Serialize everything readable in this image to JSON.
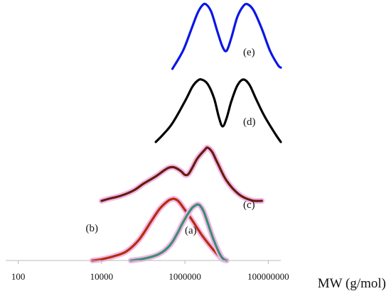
{
  "chart_data": {
    "type": "line",
    "xscale": "log",
    "xlim": [
      50,
      200000000
    ],
    "xlabel": "MW (g/mol)",
    "ylabel": "",
    "yaxis_shown": false,
    "grid": false,
    "legend": "none",
    "ticks": [
      {
        "value": 100,
        "label": "100"
      },
      {
        "value": 10000,
        "label": "10000"
      },
      {
        "value": 1000000,
        "label": "1000000"
      },
      {
        "value": 100000000,
        "label": "100000000"
      }
    ],
    "series": [
      {
        "name": "(a)",
        "color": "#3a8f70",
        "glow": "#f2b8e8",
        "baseline": 0,
        "points": [
          [
            50000,
            0
          ],
          [
            100000,
            0.03
          ],
          [
            200000,
            0.09
          ],
          [
            300000,
            0.16
          ],
          [
            400000,
            0.24
          ],
          [
            500000,
            0.33
          ],
          [
            600000,
            0.43
          ],
          [
            700000,
            0.52
          ],
          [
            800000,
            0.61
          ],
          [
            1000000,
            0.74
          ],
          [
            1200000,
            0.84
          ],
          [
            1500000,
            0.94
          ],
          [
            1800000,
            0.985
          ],
          [
            2000000,
            1.0
          ],
          [
            2300000,
            0.98
          ],
          [
            2800000,
            0.88
          ],
          [
            3500000,
            0.68
          ],
          [
            4000000,
            0.55
          ],
          [
            5000000,
            0.35
          ],
          [
            6500000,
            0.15
          ],
          [
            8000000,
            0.04
          ],
          [
            10000000,
            0
          ]
        ]
      },
      {
        "name": "(b)",
        "color": "#b52d0a",
        "glow": "#f2b8e8",
        "baseline": 0,
        "points": [
          [
            6000,
            0
          ],
          [
            10000,
            0.02
          ],
          [
            20000,
            0.07
          ],
          [
            40000,
            0.15
          ],
          [
            80000,
            0.34
          ],
          [
            150000,
            0.62
          ],
          [
            250000,
            0.84
          ],
          [
            400000,
            0.97
          ],
          [
            500000,
            0.995
          ],
          [
            550000,
            1.0
          ],
          [
            700000,
            0.96
          ],
          [
            1000000,
            0.82
          ],
          [
            1500000,
            0.65
          ],
          [
            2500000,
            0.42
          ],
          [
            4000000,
            0.24
          ],
          [
            6000000,
            0.1
          ],
          [
            8000000,
            0.02
          ],
          [
            10000000,
            0
          ]
        ]
      },
      {
        "name": "(c)",
        "color": "#651e0a",
        "glow": "#f2b8e8",
        "baseline": 0,
        "points": [
          [
            10000,
            0
          ],
          [
            15000,
            0.04
          ],
          [
            30000,
            0.1
          ],
          [
            60000,
            0.2
          ],
          [
            100000,
            0.32
          ],
          [
            200000,
            0.46
          ],
          [
            300000,
            0.56
          ],
          [
            400000,
            0.62
          ],
          [
            500000,
            0.635
          ],
          [
            600000,
            0.62
          ],
          [
            800000,
            0.56
          ],
          [
            1000000,
            0.49
          ],
          [
            1200000,
            0.5
          ],
          [
            1500000,
            0.62
          ],
          [
            2000000,
            0.8
          ],
          [
            3000000,
            0.96
          ],
          [
            3500000,
            1.0
          ],
          [
            4500000,
            0.92
          ],
          [
            6000000,
            0.72
          ],
          [
            10000000,
            0.38
          ],
          [
            20000000,
            0.12
          ],
          [
            40000000,
            0.01
          ],
          [
            70000000,
            0
          ]
        ]
      },
      {
        "name": "(d)",
        "color": "#000000",
        "glow": "none",
        "baseline": 0,
        "points": [
          [
            200000,
            0
          ],
          [
            300000,
            0.12
          ],
          [
            500000,
            0.3
          ],
          [
            1000000,
            0.65
          ],
          [
            1500000,
            0.88
          ],
          [
            2000000,
            0.98
          ],
          [
            2500000,
            1.0
          ],
          [
            3500000,
            0.93
          ],
          [
            5000000,
            0.7
          ],
          [
            6500000,
            0.4
          ],
          [
            8000000,
            0.25
          ],
          [
            10000000,
            0.38
          ],
          [
            13000000,
            0.65
          ],
          [
            18000000,
            0.9
          ],
          [
            25000000,
            1.0
          ],
          [
            35000000,
            0.92
          ],
          [
            50000000,
            0.7
          ],
          [
            80000000,
            0.42
          ],
          [
            150000000,
            0.12
          ],
          [
            200000000,
            0
          ]
        ]
      },
      {
        "name": "(e)",
        "color": "#0a16e6",
        "glow": "none",
        "baseline": 0,
        "points": [
          [
            500000,
            0
          ],
          [
            900000,
            0.28
          ],
          [
            1400000,
            0.6
          ],
          [
            2000000,
            0.86
          ],
          [
            2600000,
            0.98
          ],
          [
            3200000,
            1.0
          ],
          [
            4300000,
            0.88
          ],
          [
            6000000,
            0.58
          ],
          [
            8000000,
            0.34
          ],
          [
            10000000,
            0.28
          ],
          [
            13000000,
            0.48
          ],
          [
            18000000,
            0.8
          ],
          [
            25000000,
            0.97
          ],
          [
            32000000,
            1.0
          ],
          [
            45000000,
            0.9
          ],
          [
            70000000,
            0.62
          ],
          [
            110000000,
            0.28
          ],
          [
            170000000,
            0.06
          ],
          [
            200000000,
            0.02
          ]
        ]
      }
    ],
    "annotations": [
      {
        "series": "(a)",
        "text": "(a)"
      },
      {
        "series": "(b)",
        "text": "(b)"
      },
      {
        "series": "(c)",
        "text": "(c)"
      },
      {
        "series": "(d)",
        "text": "(d)"
      },
      {
        "series": "(e)",
        "text": "(e)"
      }
    ]
  }
}
